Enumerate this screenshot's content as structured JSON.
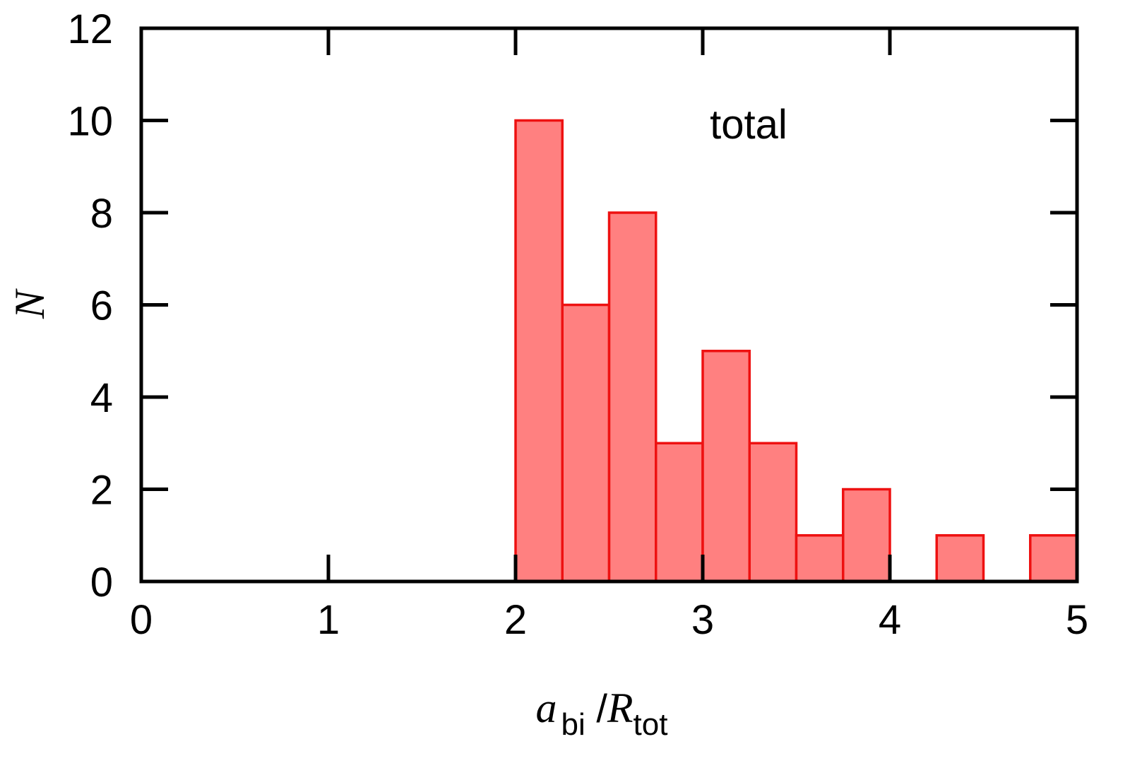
{
  "chart_data": {
    "type": "bar",
    "subtype": "histogram",
    "bins": [
      {
        "x0": 2.0,
        "x1": 2.25,
        "count": 10
      },
      {
        "x0": 2.25,
        "x1": 2.5,
        "count": 6
      },
      {
        "x0": 2.5,
        "x1": 2.75,
        "count": 8
      },
      {
        "x0": 2.75,
        "x1": 3.0,
        "count": 3
      },
      {
        "x0": 3.0,
        "x1": 3.25,
        "count": 5
      },
      {
        "x0": 3.25,
        "x1": 3.5,
        "count": 3
      },
      {
        "x0": 3.5,
        "x1": 3.75,
        "count": 1
      },
      {
        "x0": 3.75,
        "x1": 4.0,
        "count": 2
      },
      {
        "x0": 4.25,
        "x1": 4.5,
        "count": 1
      },
      {
        "x0": 4.75,
        "x1": 5.0,
        "count": 1
      }
    ],
    "xlim": [
      0,
      5
    ],
    "ylim": [
      0,
      12
    ],
    "xticks": [
      "0",
      "1",
      "2",
      "3",
      "4",
      "5"
    ],
    "yticks": [
      "0",
      "2",
      "4",
      "6",
      "8",
      "10",
      "12"
    ],
    "xlabel": {
      "main": "a",
      "sub1": "bi",
      "sep": " /",
      "main2": "R",
      "sub2": "tot"
    },
    "ylabel": "N",
    "annotation": "total",
    "bar_fill": "#ff8080",
    "bar_stroke": "#ee1111",
    "grid": false
  }
}
